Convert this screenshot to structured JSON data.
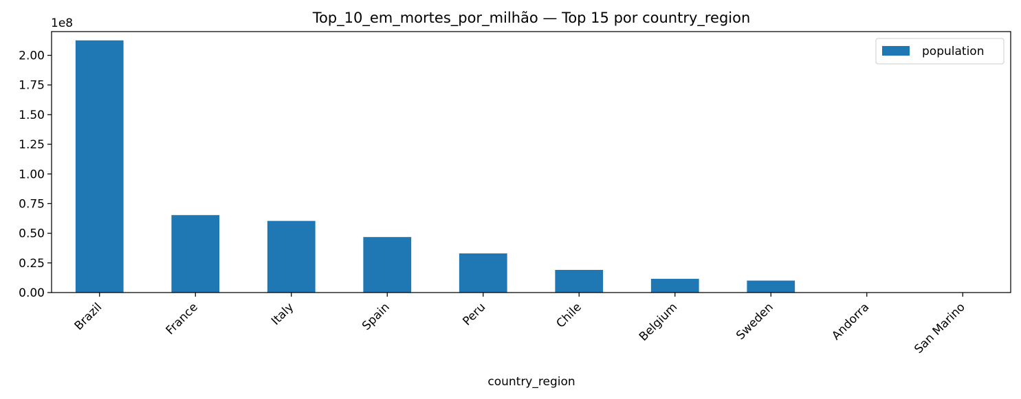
{
  "chart_data": {
    "type": "bar",
    "title": "Top_10_em_mortes_por_milhão — Top 15 por country_region",
    "xlabel": "country_region",
    "ylabel": "",
    "y_offset_label": "1e8",
    "y_scale": 100000000,
    "ylim": [
      0,
      2.2
    ],
    "yticks": [
      0.0,
      0.25,
      0.5,
      0.75,
      1.0,
      1.25,
      1.5,
      1.75,
      2.0
    ],
    "ytick_labels": [
      "0.00",
      "0.25",
      "0.50",
      "0.75",
      "1.00",
      "1.25",
      "1.50",
      "1.75",
      "2.00"
    ],
    "categories": [
      "Brazil",
      "France",
      "Italy",
      "Spain",
      "Peru",
      "Chile",
      "Belgium",
      "Sweden",
      "Andorra",
      "San Marino"
    ],
    "series": [
      {
        "name": "population",
        "color": "#1f77b4",
        "values": [
          212600000,
          65300000,
          60400000,
          46800000,
          33000000,
          19100000,
          11600000,
          10100000,
          77000,
          34000
        ]
      }
    ],
    "legend": {
      "position": "upper right",
      "entries": [
        "population"
      ]
    },
    "grid": false
  }
}
